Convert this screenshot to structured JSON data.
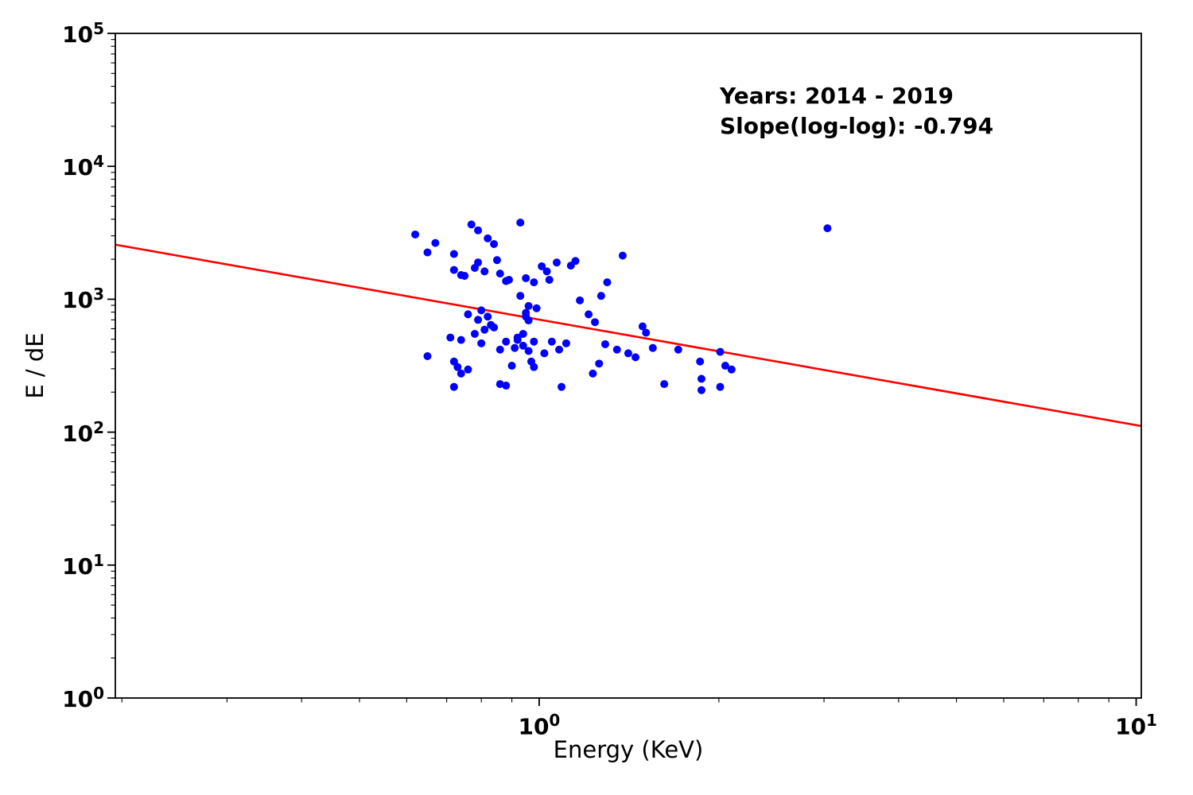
{
  "figure": {
    "background": "#ffffff"
  },
  "chart_data": {
    "type": "scatter",
    "title": "",
    "xlabel": "Energy (KeV)",
    "ylabel": "E / dE",
    "x_scale": "log",
    "y_scale": "log",
    "xlim": [
      0.195,
      10.2
    ],
    "ylim": [
      1,
      100000
    ],
    "grid": false,
    "legend_position": "none",
    "x_ticks": [
      {
        "value": 1,
        "base": "10",
        "exp": "0"
      },
      {
        "value": 10,
        "base": "10",
        "exp": "1"
      }
    ],
    "y_ticks": [
      {
        "value": 1,
        "base": "10",
        "exp": "0"
      },
      {
        "value": 10,
        "base": "10",
        "exp": "1"
      },
      {
        "value": 100,
        "base": "10",
        "exp": "2"
      },
      {
        "value": 1000,
        "base": "10",
        "exp": "3"
      },
      {
        "value": 10000,
        "base": "10",
        "exp": "4"
      },
      {
        "value": 100000,
        "base": "10",
        "exp": "5"
      }
    ],
    "annotation": {
      "line1": "Years: 2014 - 2019",
      "line2": "Slope(log-log): -0.794"
    },
    "fit": {
      "slope": -0.794,
      "y_at_x1": 703
    },
    "colors": {
      "points": "#0000ff",
      "fit_line": "#ff0000",
      "axes": "#000000",
      "text": "#000000"
    },
    "marker": {
      "shape": "circle",
      "radius": 5
    },
    "points": [
      [
        0.62,
        3070
      ],
      [
        0.67,
        2650
      ],
      [
        0.77,
        3650
      ],
      [
        0.79,
        3300
      ],
      [
        0.82,
        2870
      ],
      [
        0.93,
        3770
      ],
      [
        0.84,
        2600
      ],
      [
        3.04,
        3420
      ],
      [
        0.65,
        2250
      ],
      [
        0.72,
        2190
      ],
      [
        0.72,
        1660
      ],
      [
        0.74,
        1520
      ],
      [
        0.79,
        1890
      ],
      [
        0.81,
        1620
      ],
      [
        0.85,
        1970
      ],
      [
        0.86,
        1560
      ],
      [
        1.01,
        1770
      ],
      [
        1.03,
        1620
      ],
      [
        1.07,
        1890
      ],
      [
        1.13,
        1790
      ],
      [
        1.15,
        1940
      ],
      [
        1.38,
        2130
      ],
      [
        0.88,
        1370
      ],
      [
        0.95,
        1440
      ],
      [
        0.98,
        1340
      ],
      [
        1.04,
        1400
      ],
      [
        0.75,
        1500
      ],
      [
        0.93,
        1060
      ],
      [
        0.96,
        890
      ],
      [
        1.17,
        980
      ],
      [
        1.27,
        1060
      ],
      [
        1.3,
        1340
      ],
      [
        0.78,
        1720
      ],
      [
        0.89,
        1400
      ],
      [
        0.76,
        770
      ],
      [
        0.8,
        825
      ],
      [
        0.82,
        740
      ],
      [
        0.95,
        740
      ],
      [
        1.49,
        625
      ],
      [
        1.51,
        560
      ],
      [
        0.79,
        700
      ],
      [
        0.96,
        693
      ],
      [
        0.95,
        790
      ],
      [
        0.99,
        855
      ],
      [
        0.71,
        515
      ],
      [
        0.74,
        494
      ],
      [
        0.78,
        549
      ],
      [
        0.8,
        466
      ],
      [
        0.84,
        613
      ],
      [
        0.86,
        418
      ],
      [
        0.88,
        480
      ],
      [
        0.91,
        430
      ],
      [
        0.92,
        494
      ],
      [
        0.94,
        447
      ],
      [
        0.96,
        408
      ],
      [
        0.98,
        480
      ],
      [
        1.02,
        392
      ],
      [
        1.05,
        480
      ],
      [
        1.08,
        418
      ],
      [
        1.11,
        466
      ],
      [
        1.21,
        770
      ],
      [
        1.24,
        672
      ],
      [
        1.29,
        459
      ],
      [
        1.35,
        418
      ],
      [
        1.41,
        392
      ],
      [
        1.45,
        366
      ],
      [
        1.55,
        430
      ],
      [
        1.71,
        418
      ],
      [
        2.01,
        402
      ],
      [
        0.92,
        515
      ],
      [
        0.94,
        549
      ],
      [
        0.81,
        590
      ],
      [
        0.83,
        641
      ],
      [
        0.65,
        373
      ],
      [
        0.72,
        340
      ],
      [
        0.73,
        309
      ],
      [
        0.72,
        219
      ],
      [
        0.74,
        276
      ],
      [
        0.76,
        296
      ],
      [
        0.86,
        230
      ],
      [
        0.88,
        224
      ],
      [
        0.9,
        316
      ],
      [
        0.97,
        340
      ],
      [
        0.98,
        309
      ],
      [
        1.09,
        219
      ],
      [
        1.23,
        276
      ],
      [
        1.26,
        328
      ],
      [
        1.62,
        230
      ],
      [
        1.86,
        340
      ],
      [
        1.87,
        207
      ],
      [
        1.87,
        252
      ],
      [
        2.01,
        219
      ],
      [
        2.05,
        316
      ],
      [
        2.1,
        296
      ]
    ]
  }
}
